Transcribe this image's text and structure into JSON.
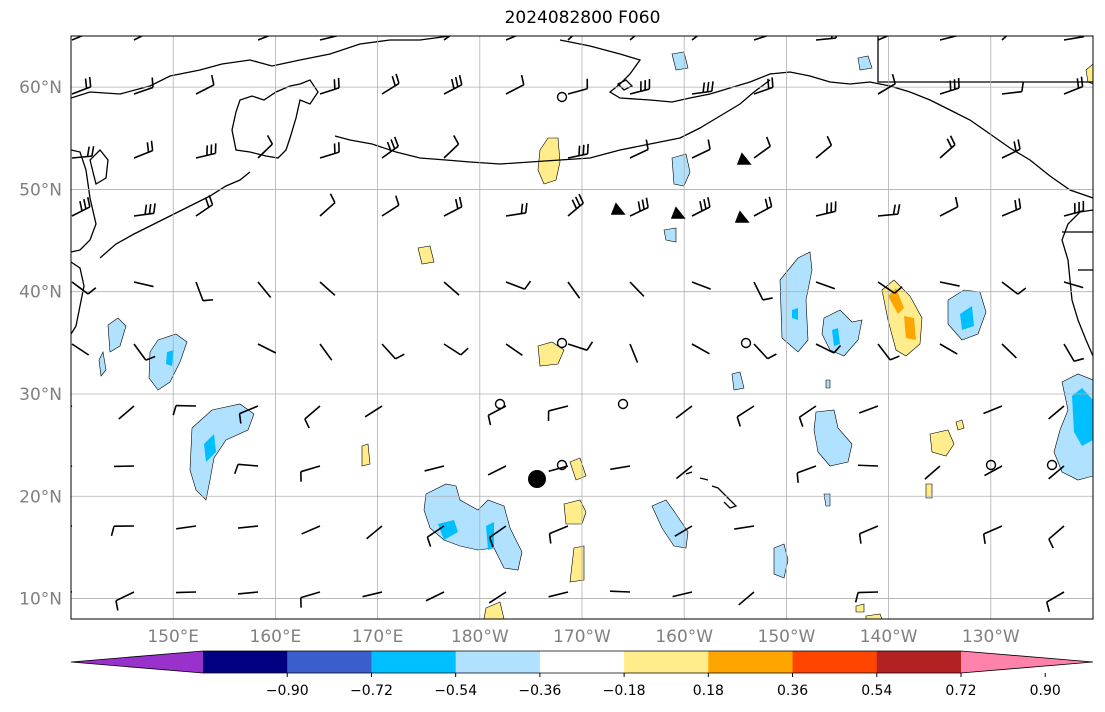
{
  "title": "2024082800 F060",
  "map": {
    "lat_labels": [
      "60°N",
      "50°N",
      "40°N",
      "30°N",
      "20°N",
      "10°N"
    ],
    "lon_labels": [
      "150°E",
      "160°E",
      "170°E",
      "180°W",
      "170°W",
      "160°W",
      "150°W",
      "140°W",
      "130°W"
    ],
    "extent": {
      "lon_min": 140,
      "lon_max": 240,
      "lat_min": 8,
      "lat_max": 65
    },
    "grid_lons": [
      150,
      160,
      170,
      180,
      190,
      200,
      210,
      220,
      230
    ],
    "grid_lats": [
      10,
      20,
      30,
      40,
      50,
      60
    ]
  },
  "colorbar": {
    "levels": [
      "−0.90",
      "−0.72",
      "−0.54",
      "−0.36",
      "−0.18",
      "0.18",
      "0.36",
      "0.54",
      "0.72",
      "0.90"
    ],
    "colors": [
      "#9932cc",
      "#000080",
      "#3a5fcd",
      "#00bfff",
      "#b0e2ff",
      "#ffffff",
      "#ffec8b",
      "#ffa500",
      "#ff4500",
      "#b22222",
      "#ff82ab"
    ]
  },
  "contour_colors": {
    "light_blue": "#b0e2ff",
    "blue": "#00bfff",
    "yellow": "#ffec8b",
    "orange": "#ffa500"
  }
}
